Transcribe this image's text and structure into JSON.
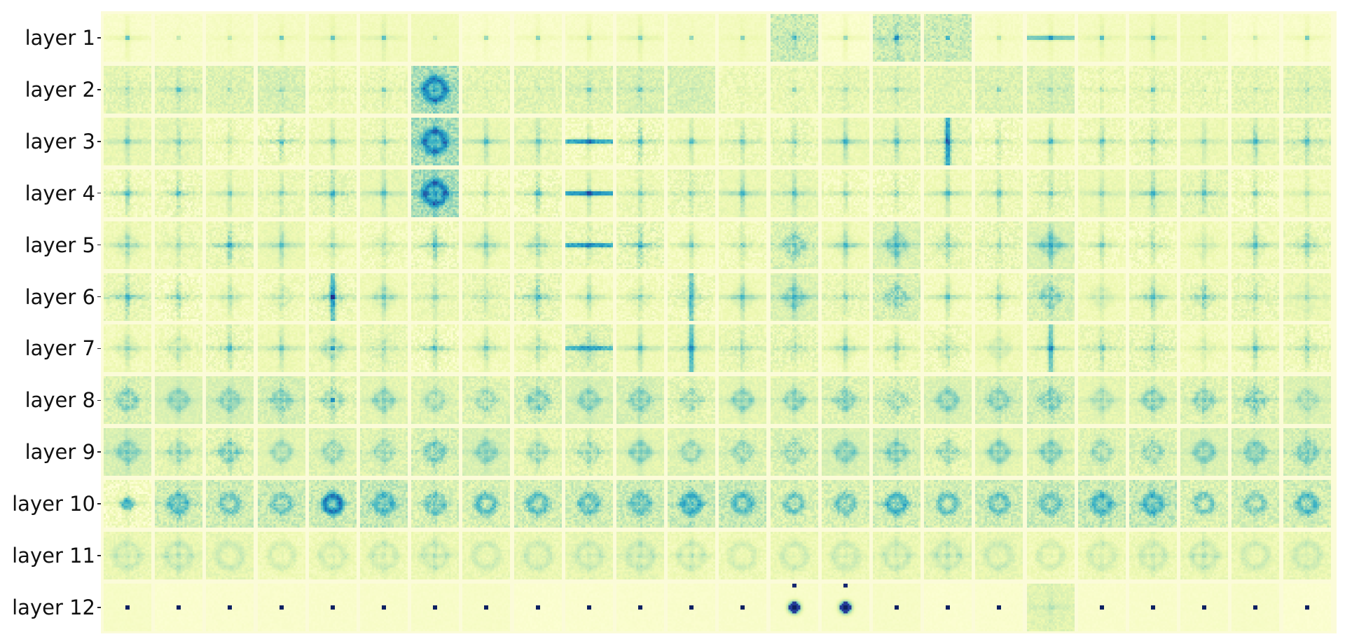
{
  "chart_data": {
    "type": "heatmap",
    "rows": [
      "layer 1",
      "layer 2",
      "layer 3",
      "layer 4",
      "layer 5",
      "layer 6",
      "layer 7",
      "layer 8",
      "layer 9",
      "layer 10",
      "layer 11",
      "layer 12"
    ],
    "columns_per_row": 24,
    "colormap": "YlGnBu",
    "colors": {
      "low": "#ffffd9",
      "mid": "#7fcdbb",
      "high": "#081d58",
      "background": "#fbfbd8"
    },
    "grid": false
  }
}
